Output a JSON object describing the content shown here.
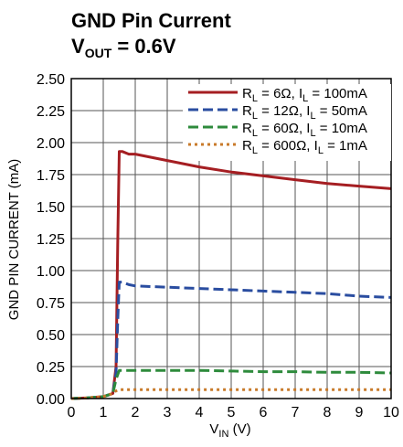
{
  "chart_data": {
    "type": "line",
    "title_line1": "GND Pin Current",
    "title_line2": {
      "v": "V",
      "sub": "OUT",
      "rest": " = 0.6V"
    },
    "xlabel": {
      "v": "V",
      "sub": "IN",
      "rest": " (V)"
    },
    "ylabel": "GND PIN CURRENT (mA)",
    "xlim": [
      0,
      10
    ],
    "ylim": [
      0,
      2.5
    ],
    "x_ticks": [
      "0",
      "1",
      "2",
      "3",
      "4",
      "5",
      "6",
      "7",
      "8",
      "9",
      "10"
    ],
    "y_ticks": [
      "0.00",
      "0.25",
      "0.50",
      "0.75",
      "1.00",
      "1.25",
      "1.50",
      "1.75",
      "2.00",
      "2.25",
      "2.50"
    ],
    "grid": true,
    "legend_position": "top-right",
    "series": [
      {
        "legend": {
          "r": "6Ω",
          "i": "100mA"
        },
        "color": "#a51e22",
        "style": "solid",
        "x": [
          0,
          0.5,
          1.0,
          1.3,
          1.4,
          1.45,
          1.5,
          1.6,
          1.8,
          2.0,
          3,
          4,
          5,
          6,
          7,
          8,
          9,
          10
        ],
        "y": [
          0,
          0.005,
          0.015,
          0.04,
          0.25,
          1.2,
          1.93,
          1.93,
          1.91,
          1.91,
          1.86,
          1.81,
          1.77,
          1.74,
          1.71,
          1.68,
          1.66,
          1.64
        ]
      },
      {
        "legend": {
          "r": "12Ω",
          "i": "50mA"
        },
        "color": "#2a4da0",
        "style": "dashed",
        "x": [
          0,
          0.5,
          1.0,
          1.3,
          1.4,
          1.45,
          1.5,
          1.6,
          1.8,
          2.0,
          3,
          4,
          5,
          6,
          7,
          8,
          9,
          10
        ],
        "y": [
          0,
          0.005,
          0.015,
          0.04,
          0.2,
          0.6,
          0.91,
          0.91,
          0.89,
          0.88,
          0.87,
          0.86,
          0.85,
          0.84,
          0.83,
          0.82,
          0.8,
          0.79
        ]
      },
      {
        "legend": {
          "r": "60Ω",
          "i": "10mA"
        },
        "color": "#2e8b3c",
        "style": "dashed",
        "x": [
          0,
          0.5,
          1.0,
          1.3,
          1.4,
          1.5,
          2,
          3,
          4,
          5,
          6,
          7,
          8,
          9,
          10
        ],
        "y": [
          0,
          0.005,
          0.015,
          0.04,
          0.15,
          0.22,
          0.22,
          0.22,
          0.22,
          0.215,
          0.21,
          0.21,
          0.205,
          0.205,
          0.2
        ]
      },
      {
        "legend": {
          "r": "600Ω",
          "i": "1mA"
        },
        "color": "#c87a2a",
        "style": "dotted",
        "x": [
          0,
          0.5,
          1.0,
          1.3,
          1.4,
          1.5,
          2,
          3,
          4,
          5,
          6,
          7,
          8,
          9,
          10
        ],
        "y": [
          0,
          0.005,
          0.015,
          0.04,
          0.06,
          0.07,
          0.07,
          0.07,
          0.07,
          0.07,
          0.07,
          0.07,
          0.07,
          0.07,
          0.07
        ]
      }
    ]
  }
}
